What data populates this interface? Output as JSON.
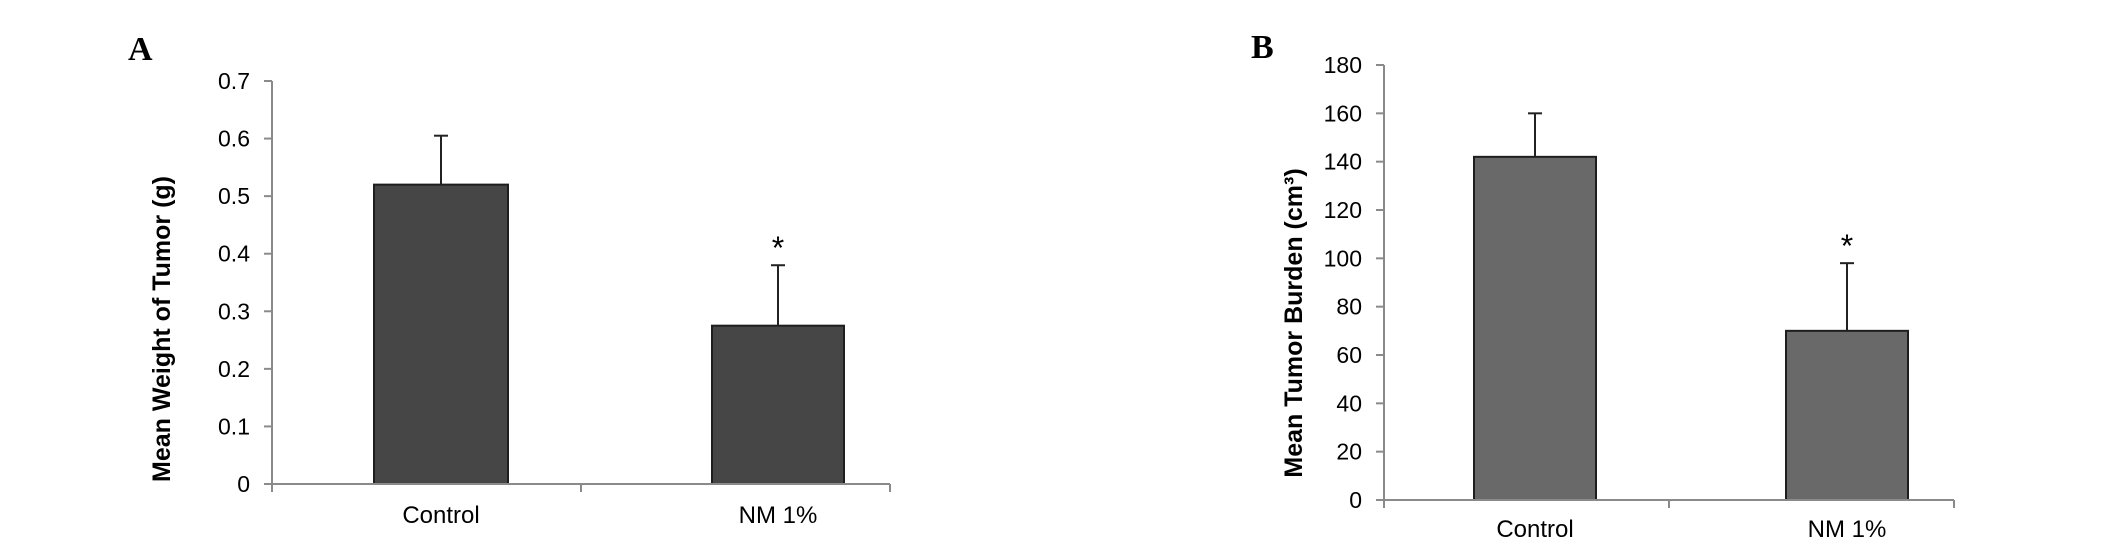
{
  "chart_data": [
    {
      "panel": "A",
      "type": "bar",
      "categories": [
        "Control",
        "NM 1%"
      ],
      "values": [
        0.52,
        0.275
      ],
      "error": [
        0.085,
        0.105
      ],
      "significance": [
        "",
        "*"
      ],
      "title": "",
      "xlabel": "",
      "ylabel": "Mean Weight of Tumor (g)",
      "ylim": [
        0,
        0.7
      ],
      "yticks": [
        "0",
        "0.1",
        "0.2",
        "0.3",
        "0.4",
        "0.5",
        "0.6",
        "0.7"
      ],
      "grid": false,
      "bar_color": "#464646"
    },
    {
      "panel": "B",
      "type": "bar",
      "categories": [
        "Control",
        "NM 1%"
      ],
      "values": [
        142,
        70
      ],
      "error": [
        18,
        28
      ],
      "significance": [
        "",
        "*"
      ],
      "title": "",
      "xlabel": "",
      "ylabel": "Mean Tumor Burden (cm³)",
      "ylim": [
        0,
        180
      ],
      "yticks": [
        "0",
        "20",
        "40",
        "60",
        "80",
        "100",
        "120",
        "140",
        "160",
        "180"
      ],
      "grid": false,
      "bar_color": "#696969"
    }
  ]
}
